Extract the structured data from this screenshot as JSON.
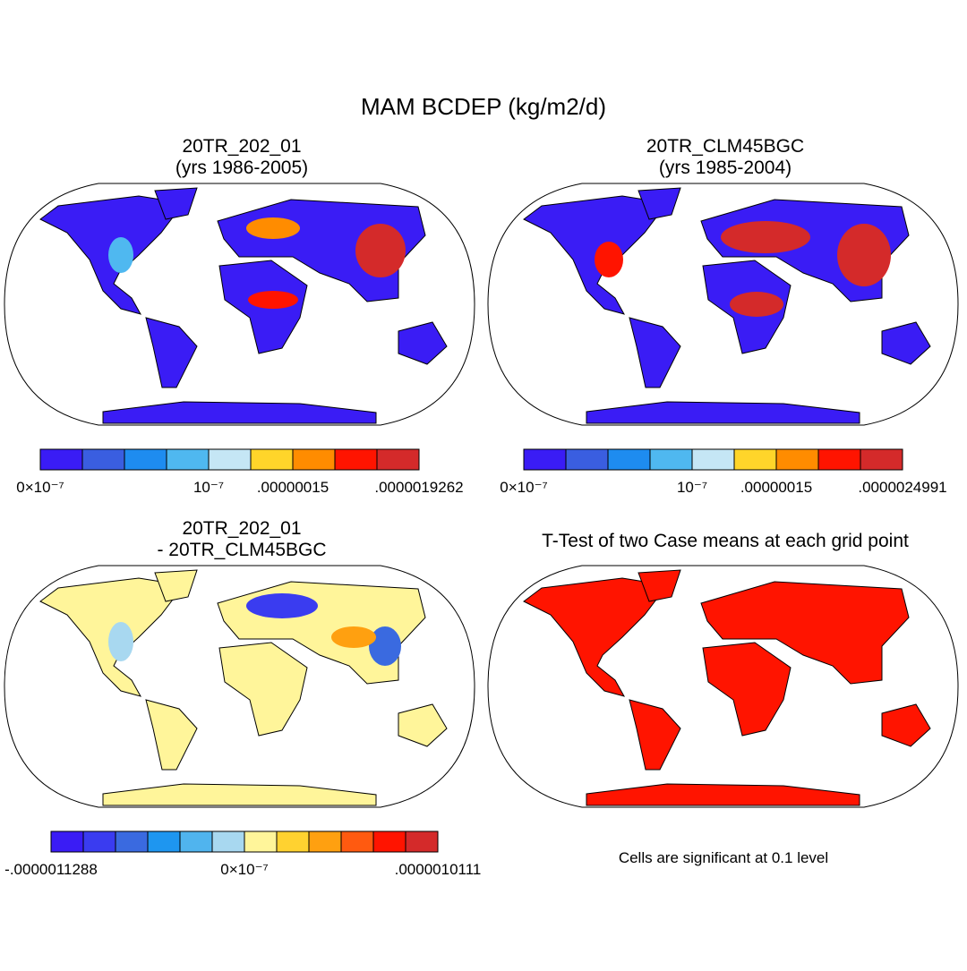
{
  "title": "MAM BCDEP (kg/m2/d)",
  "panels": [
    {
      "title": [
        "20TR_202_01",
        "(yrs 1986-2005)"
      ]
    },
    {
      "title": [
        "20TR_CLM45BGC",
        " (yrs 1985-2004)"
      ]
    },
    {
      "title": [
        "20TR_202_01",
        "- 20TR_CLM45BGC"
      ]
    },
    {
      "title": [
        "T-Test of two Case means at each grid point"
      ],
      "note": "Cells are significant at 0.1 level"
    }
  ],
  "colorbars": [
    {
      "colors": [
        "#3a1cf5",
        "#3a5ee0",
        "#1e8cf0",
        "#4fb8f0",
        "#c5e6f5",
        "#ffd52a",
        "#ff8c00",
        "#ff1400",
        "#d42a2a"
      ],
      "labels": [
        {
          "at": 0,
          "text": "0×10⁻⁷"
        },
        {
          "at": 4,
          "text": "10⁻⁷"
        },
        {
          "at": 6,
          "text": ".00000015"
        },
        {
          "at": 9,
          "text": ".0000019262"
        }
      ]
    },
    {
      "colors": [
        "#3a1cf5",
        "#3a5ee0",
        "#1e8cf0",
        "#4fb8f0",
        "#c5e6f5",
        "#ffd52a",
        "#ff8c00",
        "#ff1400",
        "#d42a2a"
      ],
      "labels": [
        {
          "at": 0,
          "text": "0×10⁻⁷"
        },
        {
          "at": 4,
          "text": "10⁻⁷"
        },
        {
          "at": 6,
          "text": ".00000015"
        },
        {
          "at": 9,
          "text": ".0000024991"
        }
      ]
    },
    {
      "colors": [
        "#3a1cf5",
        "#3a3cf0",
        "#3a6ae0",
        "#1e96f0",
        "#50b4ee",
        "#a8d8f0",
        "#fff59a",
        "#ffd230",
        "#ffa010",
        "#ff5a10",
        "#ff1400",
        "#d42a2a"
      ],
      "labels": [
        {
          "at": 0,
          "text": "-.0000011288"
        },
        {
          "at": 6,
          "text": "0×10⁻⁷"
        },
        {
          "at": 12,
          "text": ".0000010111"
        }
      ]
    }
  ]
}
